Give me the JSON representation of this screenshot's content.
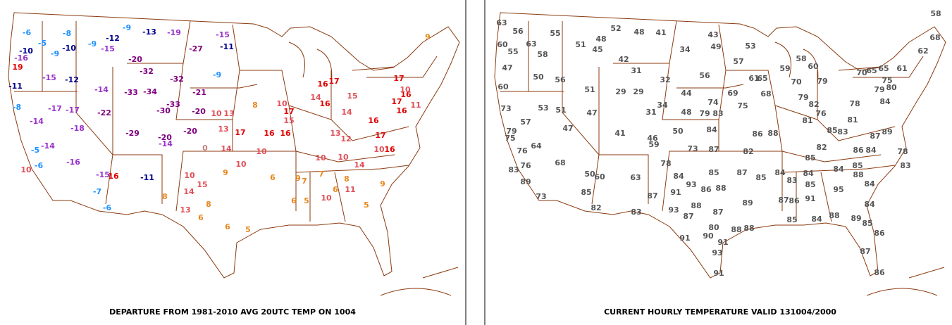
{
  "left_panel": {
    "title": "DEPARTURE FROM 1981-2010 AVG 20UTC TEMP ON 1004",
    "stations": [
      -6,
      -8,
      -5,
      -9,
      -10,
      -10,
      -12,
      -9,
      -13,
      -19,
      -15,
      -11,
      -9,
      -15,
      -27,
      -20,
      -16,
      19,
      -15,
      -12,
      -11,
      -32,
      -32,
      -9,
      -14,
      -33,
      -34,
      -21,
      -8,
      -17,
      -17,
      -22,
      -33,
      -30,
      -20,
      -14,
      -18,
      -29,
      -20,
      -14,
      -20,
      -14,
      -5,
      -16,
      -6,
      -15,
      16,
      -11,
      -7,
      -6,
      10,
      0,
      14,
      10,
      15,
      14,
      9,
      8,
      13,
      6,
      8,
      6,
      5,
      10,
      10,
      8,
      10,
      13,
      13,
      17,
      16,
      16,
      17,
      15,
      10,
      14,
      16,
      16,
      17,
      15,
      14,
      13,
      12,
      16,
      17,
      17,
      17,
      16,
      16,
      11,
      10,
      10,
      10,
      14,
      10,
      16,
      11,
      10,
      9,
      8,
      7,
      6,
      7,
      6,
      5,
      6,
      5,
      9,
      9
    ]
  },
  "right_panel": {
    "title": "CURRENT HOURLY TEMPERATURE VALID 131004/2000",
    "stations": [
      63,
      56,
      55,
      52,
      48,
      41,
      43,
      63,
      51,
      48,
      45,
      60,
      55,
      58,
      34,
      49,
      53,
      42,
      57,
      47,
      31,
      58,
      60,
      59,
      50,
      56,
      32,
      56,
      61,
      65,
      60,
      51,
      29,
      29,
      44,
      74,
      69,
      68,
      75,
      73,
      53,
      51,
      47,
      31,
      34,
      48,
      79,
      83,
      57,
      47,
      41,
      50,
      84,
      86,
      88,
      46,
      59,
      79,
      75,
      76,
      64,
      73,
      87,
      82,
      68,
      76,
      83,
      50,
      60,
      63,
      78,
      84,
      85,
      87,
      85,
      89,
      85,
      87,
      91,
      93,
      86,
      88,
      82,
      83,
      93,
      88,
      87,
      89,
      87,
      73,
      80,
      88,
      88,
      90,
      91,
      91,
      93,
      91,
      84,
      83,
      84,
      85,
      87,
      86,
      91,
      84,
      88,
      95,
      84,
      84,
      85,
      84,
      88,
      89,
      86,
      87,
      86,
      85,
      58,
      68,
      62,
      70,
      65,
      65,
      61,
      75,
      79,
      80,
      84,
      85,
      82,
      86,
      84,
      85,
      85,
      81,
      76,
      82,
      79,
      81,
      78,
      83,
      87,
      89,
      78,
      83,
      70,
      79
    ]
  }
}
